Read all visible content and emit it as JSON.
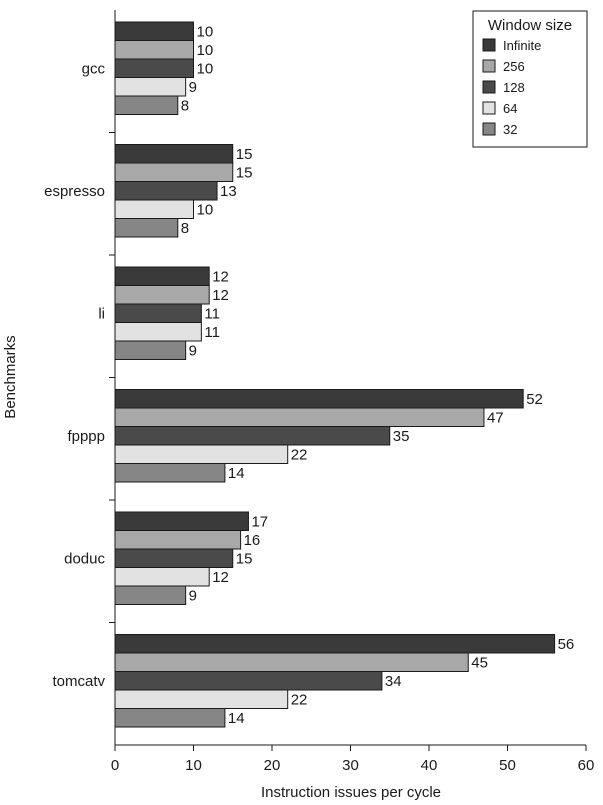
{
  "chart_data": {
    "type": "bar",
    "orientation": "horizontal",
    "categories": [
      "gcc",
      "espresso",
      "li",
      "fpppp",
      "doduc",
      "tomcatv"
    ],
    "series": [
      {
        "name": "Infinite",
        "color": "#3a3a3a",
        "values": [
          10,
          15,
          12,
          52,
          17,
          56
        ]
      },
      {
        "name": "256",
        "color": "#a8a8a8",
        "values": [
          10,
          15,
          12,
          47,
          16,
          45
        ]
      },
      {
        "name": "128",
        "color": "#4a4a4a",
        "values": [
          10,
          13,
          11,
          35,
          15,
          34
        ]
      },
      {
        "name": "64",
        "color": "#e2e2e2",
        "values": [
          9,
          10,
          11,
          22,
          12,
          22
        ]
      },
      {
        "name": "32",
        "color": "#868686",
        "values": [
          8,
          8,
          9,
          14,
          9,
          14
        ]
      }
    ],
    "xlabel": "Instruction issues per cycle",
    "ylabel": "Benchmarks",
    "xlim": [
      0,
      60
    ],
    "xticks": [
      0,
      10,
      20,
      30,
      40,
      50,
      60
    ],
    "legend_title": "Window size",
    "legend_position": "top-right",
    "grid": false
  }
}
